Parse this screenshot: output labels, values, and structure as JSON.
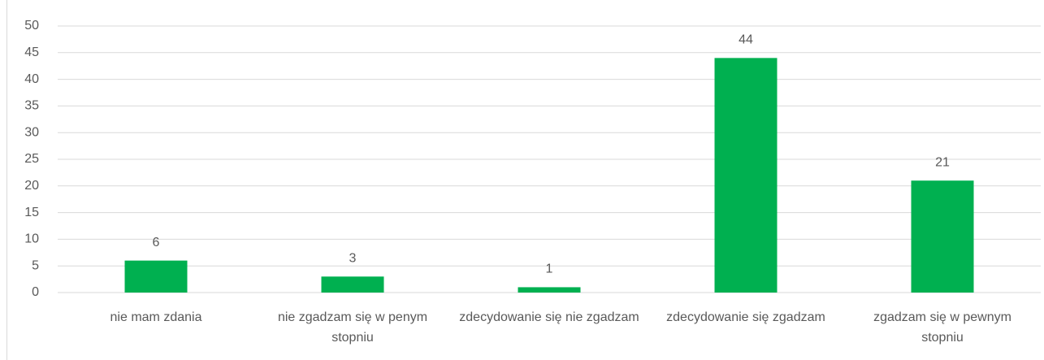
{
  "chart_data": {
    "type": "bar",
    "categories": [
      "nie mam zdania",
      "nie zgadzam się w penym stopniu",
      "zdecydowanie się nie zgadzam",
      "zdecydowanie się zgadzam",
      "zgadzam się w pewnym stopniu"
    ],
    "values": [
      6,
      3,
      1,
      44,
      21
    ],
    "color": "#00b050",
    "ylim": [
      0,
      50
    ],
    "yticks": [
      0,
      5,
      10,
      15,
      20,
      25,
      30,
      35,
      40,
      45,
      50
    ],
    "grid": true
  }
}
